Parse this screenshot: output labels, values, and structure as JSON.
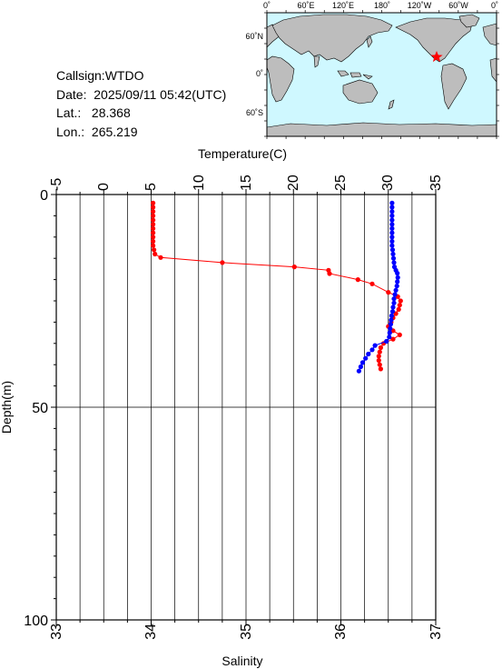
{
  "info": {
    "callsign": "Callsign:WTDO",
    "date": "Date:  2025/09/11 05:42(UTC)",
    "lat": "Lat.:   28.368",
    "lon": "Lon.:  265.219"
  },
  "map": {
    "top_labels": [
      "0˚",
      "60˚E",
      "120˚E",
      "180˚",
      "120˚W",
      "60˚W",
      "0˚"
    ],
    "left_labels": [
      "60˚N",
      "0˚",
      "60˚S"
    ],
    "ocean_color": "#cff8ff",
    "land_color": "#bdbdbd",
    "marker": "red-star"
  },
  "chart_data": {
    "type": "line",
    "top_axis_label": "Temperature(C)",
    "bottom_axis_label": "Salinity",
    "left_axis_label": "Depth(m)",
    "temperature_ticks": [
      "-5",
      "0",
      "5",
      "10",
      "15",
      "20",
      "25",
      "30",
      "35"
    ],
    "salinity_ticks": [
      "33",
      "34",
      "35",
      "36",
      "37"
    ],
    "depth_ticks": [
      "0",
      "50",
      "100"
    ],
    "temperature_range": [
      -5,
      35
    ],
    "salinity_range": [
      33,
      37
    ],
    "depth_range": [
      0,
      100
    ],
    "grid": true,
    "series": [
      {
        "color": "#ff0000",
        "axis": "salinity",
        "points": [
          [
            34.02,
            2
          ],
          [
            34.02,
            3
          ],
          [
            34.02,
            4
          ],
          [
            34.02,
            5
          ],
          [
            34.02,
            6
          ],
          [
            34.02,
            7
          ],
          [
            34.02,
            8
          ],
          [
            34.02,
            9
          ],
          [
            34.02,
            10
          ],
          [
            34.02,
            11
          ],
          [
            34.02,
            12
          ],
          [
            34.03,
            13
          ],
          [
            34.04,
            14
          ],
          [
            34.1,
            14.8
          ],
          [
            34.75,
            16
          ],
          [
            35.51,
            17
          ],
          [
            35.87,
            17.8
          ],
          [
            35.88,
            18.6
          ],
          [
            36.18,
            20
          ],
          [
            36.33,
            21
          ],
          [
            36.5,
            23
          ],
          [
            36.6,
            24
          ],
          [
            36.63,
            25
          ],
          [
            36.62,
            26
          ],
          [
            36.61,
            27
          ],
          [
            36.58,
            28
          ],
          [
            36.55,
            29
          ],
          [
            36.53,
            30
          ],
          [
            36.5,
            31
          ],
          [
            36.55,
            32
          ],
          [
            36.62,
            33
          ],
          [
            36.55,
            34
          ],
          [
            36.45,
            35
          ],
          [
            36.42,
            36
          ],
          [
            36.41,
            37
          ],
          [
            36.4,
            38
          ],
          [
            36.4,
            39
          ],
          [
            36.41,
            40
          ],
          [
            36.42,
            41
          ]
        ]
      },
      {
        "color": "#0000ff",
        "axis": "temperature",
        "points": [
          [
            30.4,
            2
          ],
          [
            30.4,
            3
          ],
          [
            30.4,
            4
          ],
          [
            30.4,
            5
          ],
          [
            30.4,
            6
          ],
          [
            30.4,
            7
          ],
          [
            30.4,
            8
          ],
          [
            30.4,
            9
          ],
          [
            30.4,
            10
          ],
          [
            30.4,
            11
          ],
          [
            30.4,
            12
          ],
          [
            30.45,
            13
          ],
          [
            30.5,
            14
          ],
          [
            30.55,
            15
          ],
          [
            30.6,
            16
          ],
          [
            30.65,
            17
          ],
          [
            30.8,
            17.8
          ],
          [
            30.95,
            18.5
          ],
          [
            31.0,
            19.5
          ],
          [
            30.95,
            20.5
          ],
          [
            30.9,
            21.5
          ],
          [
            30.8,
            22.5
          ],
          [
            30.7,
            23.5
          ],
          [
            30.6,
            24.5
          ],
          [
            30.6,
            25.5
          ],
          [
            30.5,
            26.5
          ],
          [
            30.45,
            27.5
          ],
          [
            30.35,
            28.5
          ],
          [
            30.3,
            29.5
          ],
          [
            30.25,
            30.5
          ],
          [
            30.2,
            31.5
          ],
          [
            30.15,
            32.5
          ],
          [
            30.1,
            33.5
          ],
          [
            29.8,
            34.5
          ],
          [
            28.6,
            35.5
          ],
          [
            28.3,
            36.5
          ],
          [
            27.9,
            37.5
          ],
          [
            27.6,
            38.5
          ],
          [
            27.3,
            39.5
          ],
          [
            27.1,
            40.5
          ],
          [
            26.9,
            41.5
          ]
        ]
      }
    ]
  }
}
